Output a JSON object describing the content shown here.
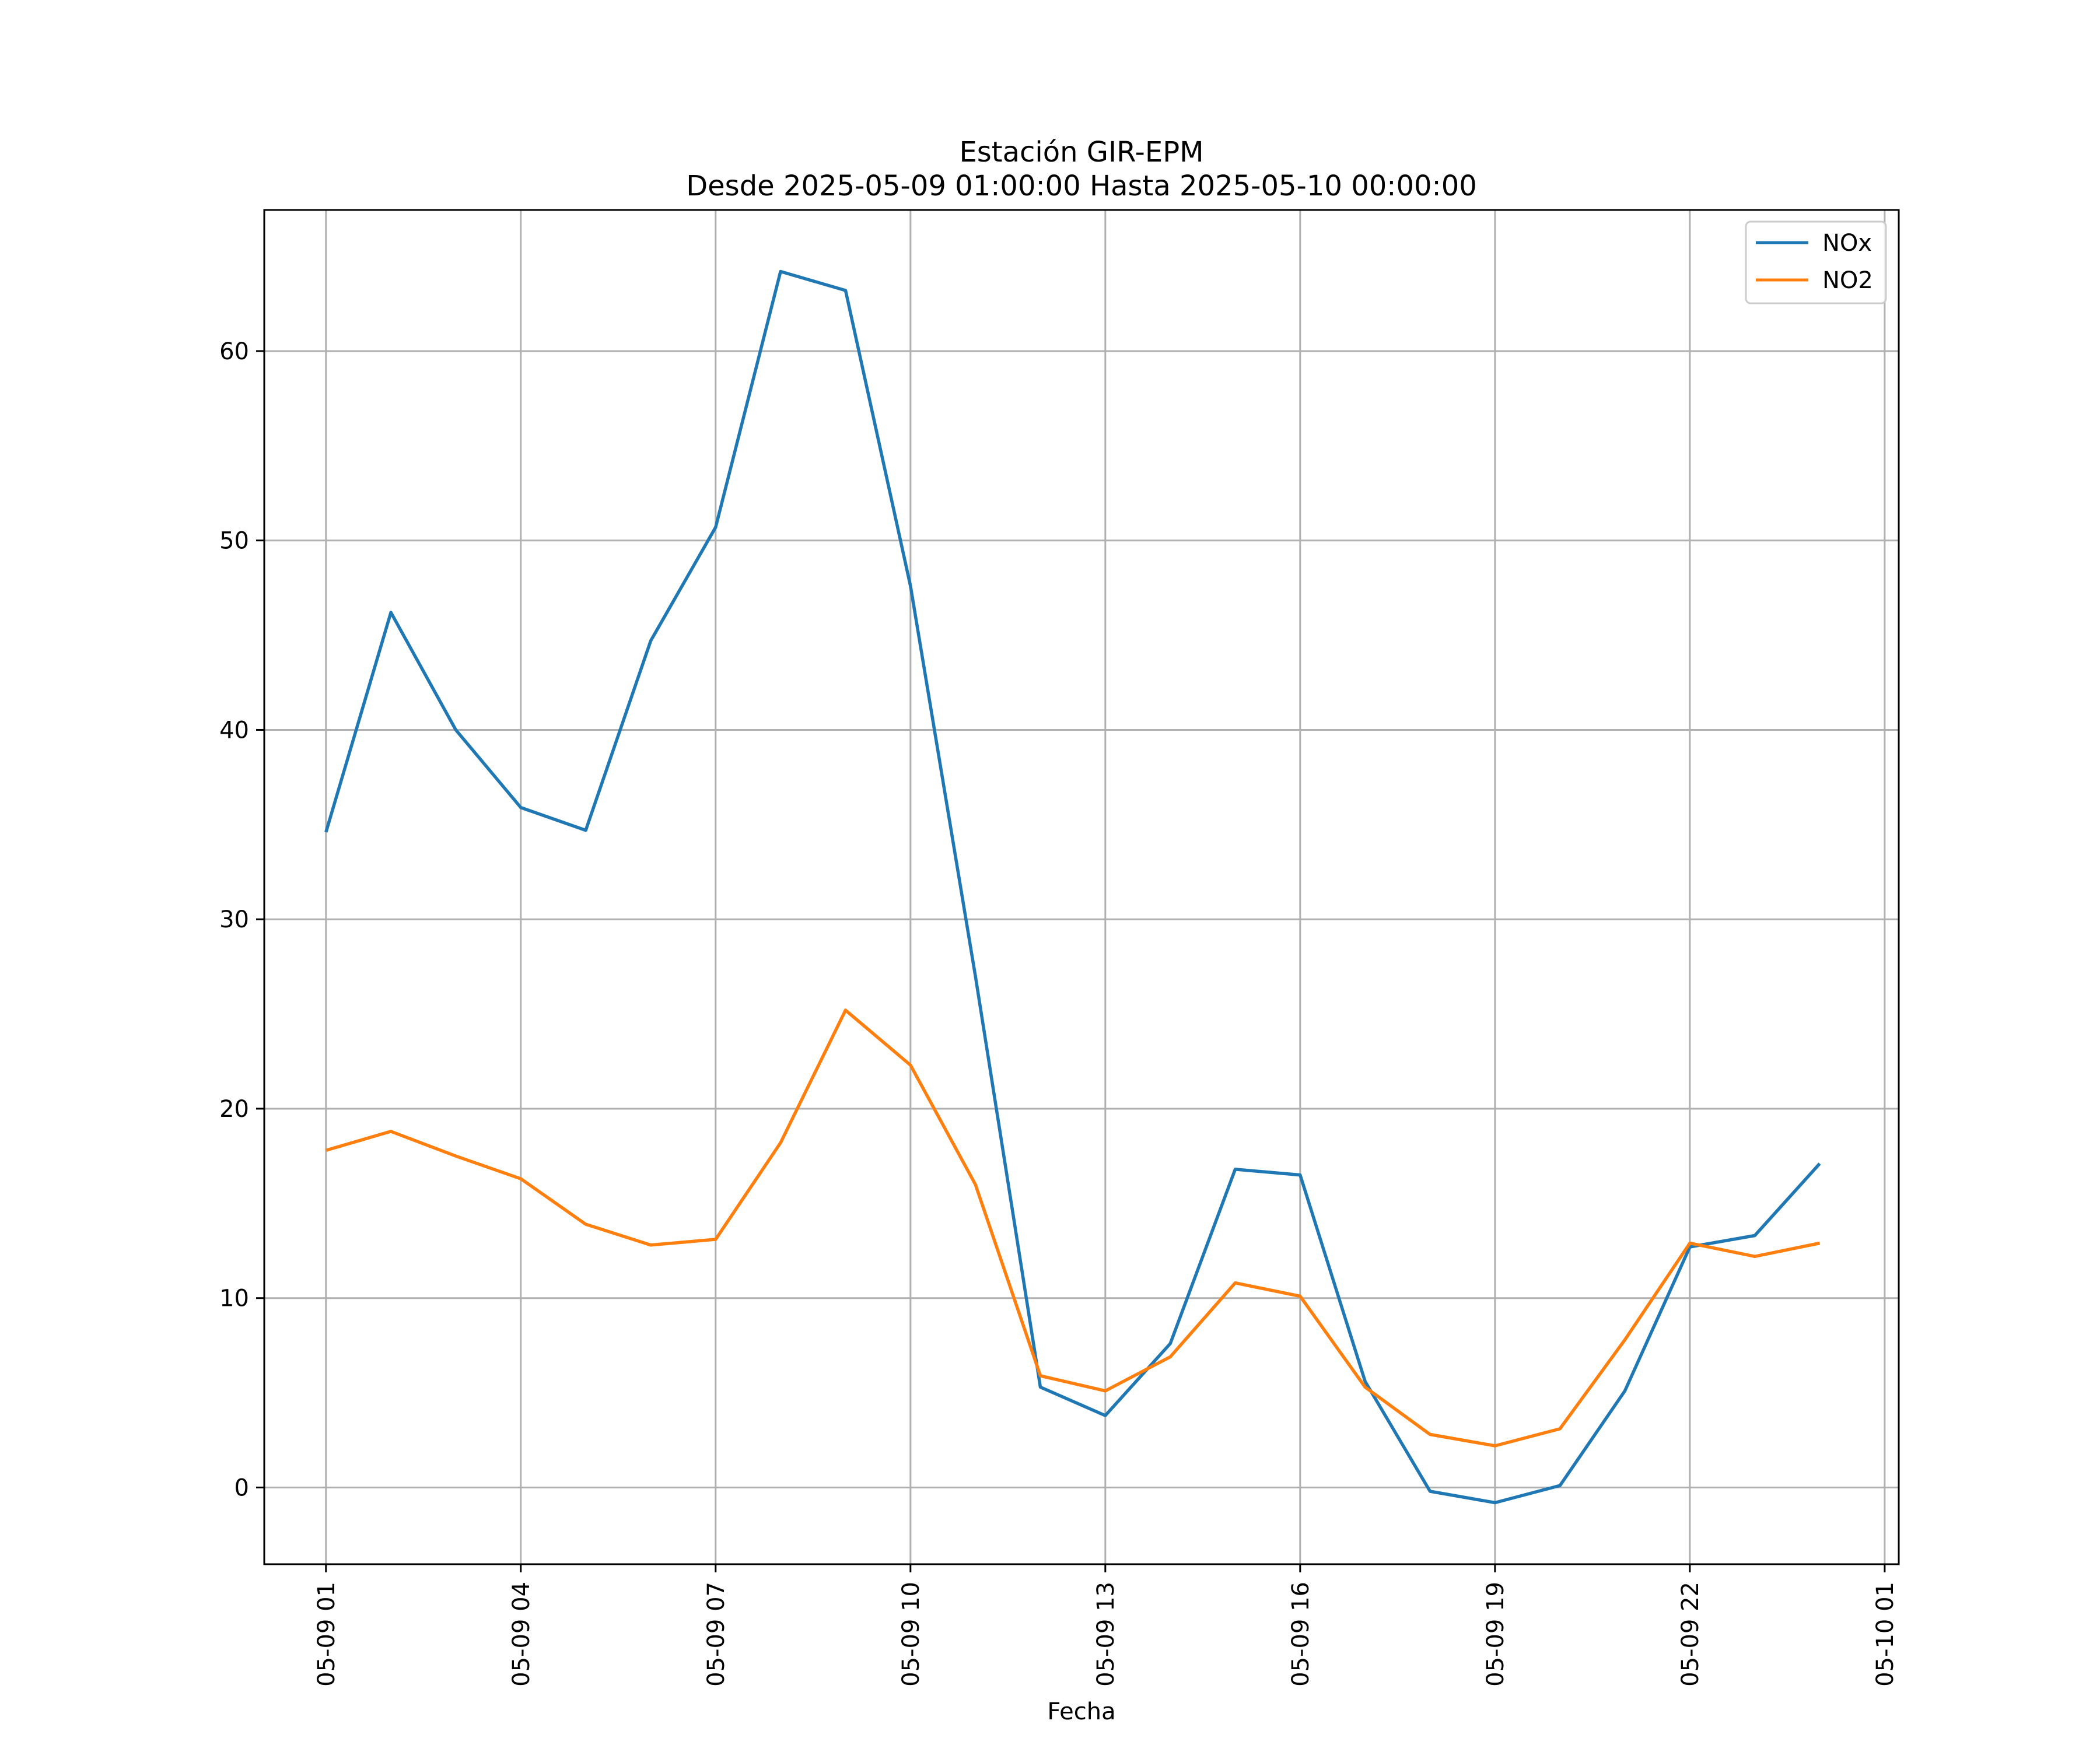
{
  "chart_data": {
    "type": "line",
    "title": "Estación GIR-EPM",
    "subtitle": "Desde 2025-05-09 01:00:00 Hasta 2025-05-10 00:00:00",
    "xlabel": "Fecha",
    "ylabel": "",
    "x": [
      "2025-05-09 01:00",
      "2025-05-09 02:00",
      "2025-05-09 03:00",
      "2025-05-09 04:00",
      "2025-05-09 05:00",
      "2025-05-09 06:00",
      "2025-05-09 07:00",
      "2025-05-09 08:00",
      "2025-05-09 09:00",
      "2025-05-09 10:00",
      "2025-05-09 11:00",
      "2025-05-09 12:00",
      "2025-05-09 13:00",
      "2025-05-09 14:00",
      "2025-05-09 15:00",
      "2025-05-09 16:00",
      "2025-05-09 17:00",
      "2025-05-09 18:00",
      "2025-05-09 19:00",
      "2025-05-09 20:00",
      "2025-05-09 21:00",
      "2025-05-09 22:00",
      "2025-05-09 23:00",
      "2025-05-10 00:00"
    ],
    "series": [
      {
        "name": "NOx",
        "color": "#1f77b4",
        "values": [
          34.6,
          46.2,
          40.0,
          35.9,
          34.7,
          44.7,
          50.7,
          64.2,
          63.2,
          47.6,
          27.0,
          5.3,
          3.8,
          7.6,
          16.8,
          16.5,
          5.6,
          -0.2,
          -0.8,
          0.1,
          5.1,
          12.7,
          13.3,
          17.1
        ]
      },
      {
        "name": "NO2",
        "color": "#ff7f0e",
        "values": [
          17.8,
          18.8,
          17.5,
          16.3,
          13.9,
          12.8,
          13.1,
          18.2,
          25.2,
          22.3,
          16.0,
          5.9,
          5.1,
          6.9,
          10.8,
          10.1,
          5.3,
          2.8,
          2.2,
          3.1,
          7.8,
          12.9,
          12.2,
          12.9
        ]
      }
    ],
    "ylim": [
      -4.05,
      67.45
    ],
    "xlim": [
      "2025-05-09 00:03",
      "2025-05-10 01:13"
    ],
    "yticks": [
      0,
      10,
      20,
      30,
      40,
      50,
      60
    ],
    "xticks": [
      "2025-05-09 01:00",
      "2025-05-09 04:00",
      "2025-05-09 07:00",
      "2025-05-09 10:00",
      "2025-05-09 13:00",
      "2025-05-09 16:00",
      "2025-05-09 19:00",
      "2025-05-09 22:00",
      "2025-05-10 01:00"
    ],
    "xtick_labels": [
      "05-09 01",
      "05-09 04",
      "05-09 07",
      "05-09 10",
      "05-09 13",
      "05-09 16",
      "05-09 19",
      "05-09 22",
      "05-10 01"
    ],
    "grid": true,
    "legend": "top-right",
    "gridColor": "#b0b0b0"
  }
}
